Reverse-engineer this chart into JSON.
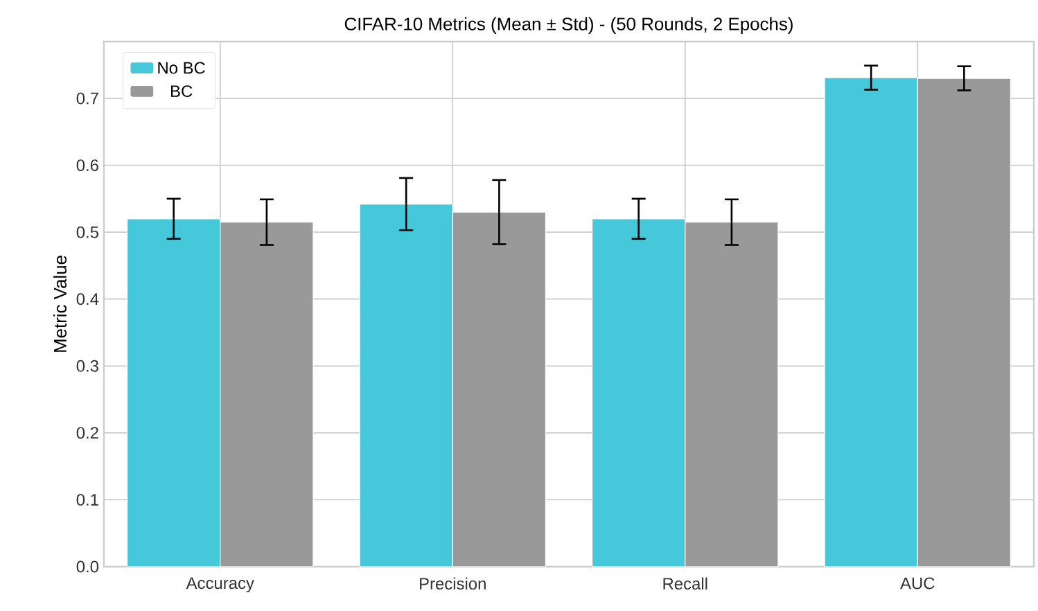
{
  "chart_data": {
    "type": "bar",
    "title": "CIFAR-10 Metrics (Mean ± Std) - (50 Rounds, 2 Epochs)",
    "ylabel": "Metric Value",
    "categories": [
      "Accuracy",
      "Precision",
      "Recall",
      "AUC"
    ],
    "series": [
      {
        "name": "No BC",
        "color": "#45c8d9",
        "values": [
          0.52,
          0.542,
          0.52,
          0.731
        ],
        "errors": [
          0.03,
          0.039,
          0.03,
          0.018
        ]
      },
      {
        "name": "BC",
        "color": "#999999",
        "values": [
          0.515,
          0.53,
          0.515,
          0.73
        ],
        "errors": [
          0.034,
          0.048,
          0.034,
          0.018
        ]
      }
    ],
    "ylim": [
      0,
      0.785
    ],
    "yticks": [
      {
        "value": 0,
        "label": "0.0"
      },
      0.1,
      0.2,
      0.3,
      0.4,
      0.5,
      0.6,
      0.7
    ],
    "grid": true,
    "legend": "top left"
  }
}
